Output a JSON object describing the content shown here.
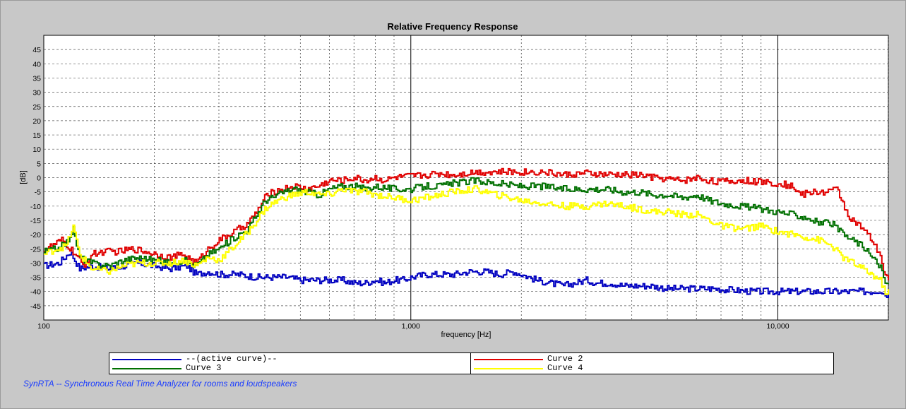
{
  "footer_text": "SynRTA -- Synchronous Real Time Analyzer for rooms and loudspeakers",
  "legend": [
    {
      "label": "--(active curve)--",
      "color": "#0000c0"
    },
    {
      "label": "Curve 2",
      "color": "#e00000"
    },
    {
      "label": "Curve 3",
      "color": "#007000"
    },
    {
      "label": "Curve 4",
      "color": "#ffff00"
    }
  ],
  "chart_data": {
    "type": "line",
    "title": "Relative Frequency Response",
    "xlabel": "frequency [Hz]",
    "ylabel": "[dB]",
    "xscale": "log",
    "xlim": [
      100,
      20000
    ],
    "ylim": [
      -50,
      50
    ],
    "x_tick_labels": [
      "100",
      "1,000",
      "10,000"
    ],
    "y_ticks": [
      45,
      40,
      35,
      30,
      25,
      20,
      15,
      10,
      5,
      0,
      -5,
      -10,
      -15,
      -20,
      -25,
      -30,
      -35,
      -40,
      -45
    ],
    "grid": true,
    "legend_position": "bottom",
    "series": [
      {
        "name": "--(active curve)--",
        "color": "#0000c0",
        "points": [
          [
            100,
            -31
          ],
          [
            110,
            -30
          ],
          [
            118,
            -26
          ],
          [
            125,
            -32
          ],
          [
            135,
            -31
          ],
          [
            150,
            -32
          ],
          [
            165,
            -31
          ],
          [
            180,
            -30
          ],
          [
            200,
            -31
          ],
          [
            220,
            -32
          ],
          [
            245,
            -31
          ],
          [
            260,
            -34
          ],
          [
            280,
            -33
          ],
          [
            300,
            -34
          ],
          [
            340,
            -34
          ],
          [
            380,
            -35
          ],
          [
            400,
            -35
          ],
          [
            430,
            -35
          ],
          [
            460,
            -35
          ],
          [
            500,
            -36
          ],
          [
            550,
            -36
          ],
          [
            600,
            -36
          ],
          [
            650,
            -36
          ],
          [
            700,
            -37
          ],
          [
            750,
            -37
          ],
          [
            800,
            -36
          ],
          [
            850,
            -37
          ],
          [
            900,
            -36
          ],
          [
            950,
            -36
          ],
          [
            1000,
            -35
          ],
          [
            1100,
            -34
          ],
          [
            1200,
            -34
          ],
          [
            1300,
            -34
          ],
          [
            1450,
            -33
          ],
          [
            1600,
            -33
          ],
          [
            1750,
            -34
          ],
          [
            1900,
            -33
          ],
          [
            2000,
            -34
          ],
          [
            2200,
            -36
          ],
          [
            2400,
            -37
          ],
          [
            2600,
            -38
          ],
          [
            2800,
            -37
          ],
          [
            3000,
            -36
          ],
          [
            3200,
            -37
          ],
          [
            3500,
            -37
          ],
          [
            3800,
            -38
          ],
          [
            4100,
            -38
          ],
          [
            4500,
            -38
          ],
          [
            5000,
            -39
          ],
          [
            5500,
            -39
          ],
          [
            6000,
            -39
          ],
          [
            6700,
            -39
          ],
          [
            7500,
            -39.5
          ],
          [
            8500,
            -40
          ],
          [
            9500,
            -40
          ],
          [
            10000,
            -40
          ],
          [
            11000,
            -40
          ],
          [
            12500,
            -40
          ],
          [
            14000,
            -40
          ],
          [
            16000,
            -40
          ],
          [
            18000,
            -40
          ],
          [
            19000,
            -39.5
          ],
          [
            19500,
            -41
          ]
        ]
      },
      {
        "name": "Curve 2",
        "color": "#e00000",
        "points": [
          [
            100,
            -25
          ],
          [
            105,
            -24
          ],
          [
            112,
            -22
          ],
          [
            120,
            -26
          ],
          [
            128,
            -31
          ],
          [
            135,
            -27
          ],
          [
            145,
            -26
          ],
          [
            160,
            -26
          ],
          [
            175,
            -25
          ],
          [
            190,
            -26
          ],
          [
            205,
            -27
          ],
          [
            220,
            -28
          ],
          [
            240,
            -27
          ],
          [
            260,
            -30
          ],
          [
            280,
            -25
          ],
          [
            300,
            -22
          ],
          [
            330,
            -19
          ],
          [
            360,
            -16
          ],
          [
            380,
            -12
          ],
          [
            400,
            -7
          ],
          [
            420,
            -5
          ],
          [
            450,
            -4
          ],
          [
            480,
            -3
          ],
          [
            520,
            -4
          ],
          [
            560,
            -3
          ],
          [
            600,
            -1
          ],
          [
            650,
            -1
          ],
          [
            700,
            0
          ],
          [
            750,
            -1
          ],
          [
            800,
            0
          ],
          [
            850,
            -1
          ],
          [
            900,
            0
          ],
          [
            1000,
            0.5
          ],
          [
            1100,
            1
          ],
          [
            1200,
            1.5
          ],
          [
            1300,
            1
          ],
          [
            1500,
            2
          ],
          [
            1700,
            2
          ],
          [
            2000,
            2
          ],
          [
            2300,
            2
          ],
          [
            2600,
            1
          ],
          [
            3000,
            1.5
          ],
          [
            3400,
            1
          ],
          [
            3800,
            1
          ],
          [
            4200,
            1
          ],
          [
            4600,
            0
          ],
          [
            5000,
            -0.5
          ],
          [
            5500,
            -1
          ],
          [
            6000,
            0
          ],
          [
            6500,
            -1
          ],
          [
            7000,
            -1.5
          ],
          [
            8000,
            -1
          ],
          [
            9000,
            -1.5
          ],
          [
            10000,
            -2
          ],
          [
            11000,
            -3
          ],
          [
            11500,
            -6
          ],
          [
            12500,
            -5
          ],
          [
            13500,
            -5
          ],
          [
            14500,
            -4
          ],
          [
            15500,
            -13
          ],
          [
            16000,
            -15
          ],
          [
            17000,
            -18
          ],
          [
            18000,
            -22
          ],
          [
            18500,
            -25
          ],
          [
            19000,
            -27
          ],
          [
            19500,
            -35
          ]
        ]
      },
      {
        "name": "Curve 3",
        "color": "#007000",
        "points": [
          [
            100,
            -26
          ],
          [
            108,
            -25
          ],
          [
            115,
            -23
          ],
          [
            120,
            -18
          ],
          [
            125,
            -28
          ],
          [
            135,
            -30
          ],
          [
            150,
            -31
          ],
          [
            165,
            -29
          ],
          [
            180,
            -28
          ],
          [
            200,
            -29
          ],
          [
            220,
            -30
          ],
          [
            240,
            -29
          ],
          [
            260,
            -31
          ],
          [
            280,
            -27
          ],
          [
            300,
            -25
          ],
          [
            330,
            -21
          ],
          [
            360,
            -18
          ],
          [
            380,
            -13
          ],
          [
            400,
            -8
          ],
          [
            420,
            -7
          ],
          [
            450,
            -5
          ],
          [
            480,
            -4
          ],
          [
            520,
            -5
          ],
          [
            560,
            -6
          ],
          [
            600,
            -4
          ],
          [
            650,
            -3
          ],
          [
            700,
            -3
          ],
          [
            750,
            -4
          ],
          [
            800,
            -3
          ],
          [
            900,
            -4
          ],
          [
            1000,
            -4
          ],
          [
            1100,
            -3
          ],
          [
            1200,
            -3
          ],
          [
            1300,
            -2
          ],
          [
            1500,
            -1
          ],
          [
            1700,
            -2
          ],
          [
            2000,
            -3
          ],
          [
            2300,
            -3
          ],
          [
            2600,
            -4
          ],
          [
            3000,
            -4
          ],
          [
            3400,
            -4
          ],
          [
            3800,
            -5
          ],
          [
            4200,
            -5
          ],
          [
            4600,
            -6
          ],
          [
            5000,
            -6
          ],
          [
            5500,
            -7
          ],
          [
            6000,
            -6
          ],
          [
            6500,
            -8
          ],
          [
            7000,
            -9
          ],
          [
            8000,
            -10
          ],
          [
            9000,
            -11
          ],
          [
            10000,
            -12
          ],
          [
            11000,
            -13
          ],
          [
            12000,
            -14
          ],
          [
            13000,
            -16
          ],
          [
            14000,
            -16
          ],
          [
            15000,
            -20
          ],
          [
            16000,
            -22
          ],
          [
            17000,
            -24
          ],
          [
            18000,
            -28
          ],
          [
            19000,
            -31
          ],
          [
            19500,
            -37
          ]
        ]
      },
      {
        "name": "Curve 4",
        "color": "#ffff00",
        "points": [
          [
            100,
            -27
          ],
          [
            108,
            -25
          ],
          [
            115,
            -24
          ],
          [
            120,
            -17
          ],
          [
            125,
            -27
          ],
          [
            135,
            -32
          ],
          [
            150,
            -33
          ],
          [
            165,
            -31
          ],
          [
            180,
            -30
          ],
          [
            200,
            -30
          ],
          [
            220,
            -30
          ],
          [
            240,
            -29
          ],
          [
            260,
            -31
          ],
          [
            280,
            -28
          ],
          [
            300,
            -29
          ],
          [
            330,
            -24
          ],
          [
            360,
            -19
          ],
          [
            380,
            -15
          ],
          [
            400,
            -11
          ],
          [
            420,
            -9
          ],
          [
            450,
            -7
          ],
          [
            480,
            -6
          ],
          [
            520,
            -5
          ],
          [
            560,
            -6
          ],
          [
            600,
            -6
          ],
          [
            650,
            -4
          ],
          [
            700,
            -5
          ],
          [
            750,
            -5
          ],
          [
            800,
            -6
          ],
          [
            900,
            -7
          ],
          [
            1000,
            -8
          ],
          [
            1100,
            -7
          ],
          [
            1200,
            -6
          ],
          [
            1300,
            -5
          ],
          [
            1500,
            -4
          ],
          [
            1700,
            -6
          ],
          [
            2000,
            -8
          ],
          [
            2300,
            -9
          ],
          [
            2600,
            -10
          ],
          [
            3000,
            -10
          ],
          [
            3400,
            -9
          ],
          [
            3800,
            -10
          ],
          [
            4200,
            -11
          ],
          [
            4600,
            -12
          ],
          [
            5000,
            -12
          ],
          [
            5500,
            -13
          ],
          [
            6000,
            -13
          ],
          [
            6500,
            -15
          ],
          [
            7000,
            -17
          ],
          [
            8000,
            -18
          ],
          [
            9000,
            -17
          ],
          [
            10000,
            -19
          ],
          [
            11000,
            -20
          ],
          [
            12000,
            -21
          ],
          [
            13000,
            -22
          ],
          [
            14000,
            -24
          ],
          [
            15000,
            -28
          ],
          [
            16000,
            -30
          ],
          [
            17000,
            -32
          ],
          [
            18000,
            -34
          ],
          [
            19000,
            -36
          ],
          [
            19500,
            -40
          ]
        ]
      }
    ]
  }
}
